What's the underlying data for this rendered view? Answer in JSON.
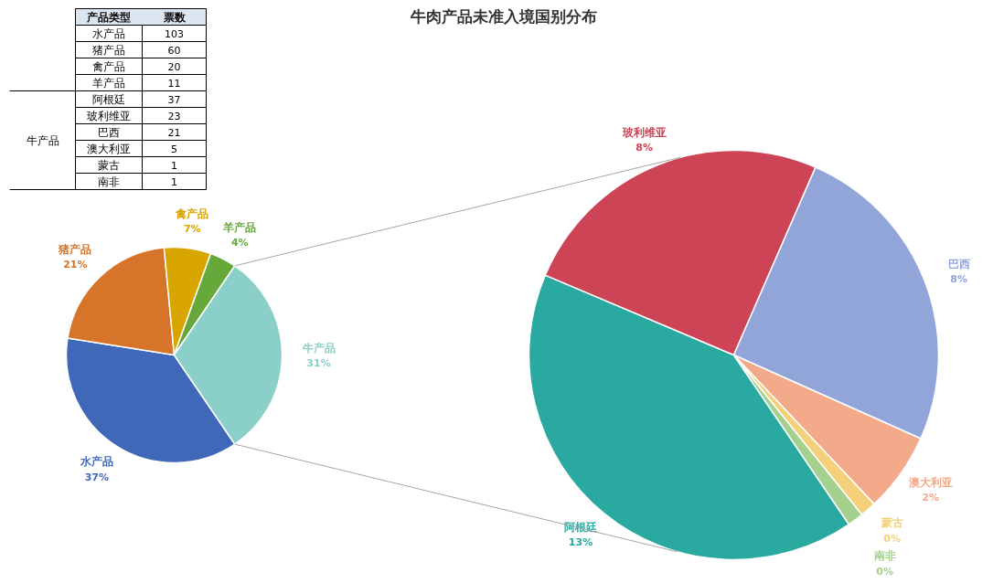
{
  "chart_data": [
    {
      "type": "other",
      "annotations": [
        "产品类型",
        "票数"
      ],
      "categories": [
        "水产品",
        "猪产品",
        "禽产品",
        "羊产品",
        "阿根廷",
        "玻利维亚",
        "巴西",
        "澳大利亚",
        "蒙古",
        "南非"
      ],
      "values": [
        103,
        60,
        20,
        11,
        37,
        23,
        21,
        5,
        1,
        1
      ],
      "data_labels": true
    },
    {
      "type": "pie",
      "title": "牛肉产品未准入境国别分布",
      "categories": [
        "水产品",
        "猪产品",
        "禽产品",
        "羊产品",
        "牛产品"
      ],
      "values": [
        37,
        21,
        7,
        4,
        31
      ],
      "colors": [
        "#4068b8",
        "#d6742a",
        "#d9a600",
        "#67a83a",
        "#8ad0c8"
      ],
      "value_labels": [
        "37%",
        "21%",
        "7%",
        "4%",
        "31%"
      ]
    },
    {
      "type": "pie",
      "categories": [
        "阿根廷",
        "玻利维亚",
        "巴西",
        "澳大利亚",
        "蒙古",
        "南非"
      ],
      "values": [
        13,
        8,
        8,
        2,
        0.4,
        0.4
      ],
      "colors": [
        "#2aa9a0",
        "#cc4455",
        "#91a5d9",
        "#f2aa8a",
        "#f5d07a",
        "#a5d18f"
      ],
      "value_labels": [
        "13%",
        "8%",
        "8%",
        "2%",
        "0%",
        "0%"
      ]
    }
  ]
}
